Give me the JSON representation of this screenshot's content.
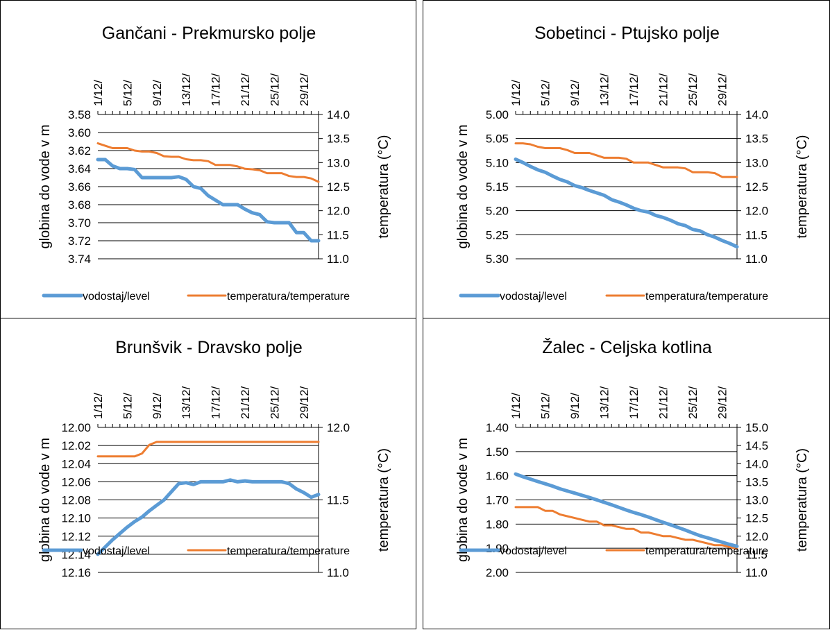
{
  "colors": {
    "level": "#5B9BD5",
    "temperature": "#ED7D31",
    "grid": "#000000"
  },
  "chart_data": [
    {
      "type": "line",
      "title": "Gančani - Prekmursko polje",
      "ylabel": "globina do vode v m",
      "y2label": "temperatura (°C)",
      "y_reversed": true,
      "ylim": [
        3.58,
        3.74
      ],
      "yticks": [
        "3.58",
        "3.60",
        "3.62",
        "3.64",
        "3.66",
        "3.68",
        "3.70",
        "3.72",
        "3.74"
      ],
      "y2lim": [
        11.0,
        14.0
      ],
      "y2ticks": [
        "14.0",
        "13.5",
        "13.0",
        "12.5",
        "12.0",
        "11.5",
        "11.0"
      ],
      "x_axis_position": "top",
      "x_ticks": [
        "1/12/",
        "5/12/",
        "9/12/",
        "13/12/",
        "17/12/",
        "21/12/",
        "25/12/",
        "29/12/"
      ],
      "grid": true,
      "legend_position": "bottom",
      "series": [
        {
          "name": "vodostaj/level",
          "axis": "left",
          "x": [
            1,
            2,
            3,
            4,
            5,
            6,
            7,
            8,
            9,
            10,
            11,
            12,
            13,
            14,
            15,
            16,
            17,
            18,
            19,
            20,
            21,
            22,
            23,
            24,
            25,
            26,
            27,
            28,
            29,
            30,
            31
          ],
          "values": [
            3.63,
            3.63,
            3.637,
            3.64,
            3.64,
            3.641,
            3.65,
            3.65,
            3.65,
            3.65,
            3.65,
            3.649,
            3.652,
            3.66,
            3.662,
            3.67,
            3.675,
            3.68,
            3.68,
            3.68,
            3.685,
            3.689,
            3.691,
            3.699,
            3.7,
            3.7,
            3.7,
            3.711,
            3.711,
            3.72,
            3.72
          ]
        },
        {
          "name": "temperatura/temperature",
          "axis": "right",
          "x": [
            1,
            2,
            3,
            4,
            5,
            6,
            7,
            8,
            9,
            10,
            11,
            12,
            13,
            14,
            15,
            16,
            17,
            18,
            19,
            20,
            21,
            22,
            23,
            24,
            25,
            26,
            27,
            28,
            29,
            30,
            31
          ],
          "values": [
            13.4,
            13.35,
            13.3,
            13.3,
            13.3,
            13.25,
            13.23,
            13.23,
            13.2,
            13.13,
            13.12,
            13.12,
            13.07,
            13.05,
            13.05,
            13.03,
            12.95,
            12.95,
            12.95,
            12.92,
            12.87,
            12.86,
            12.84,
            12.78,
            12.78,
            12.78,
            12.72,
            12.7,
            12.7,
            12.67,
            12.6
          ]
        }
      ]
    },
    {
      "type": "line",
      "title": "Sobetinci - Ptujsko polje",
      "ylabel": "globina do vode v m",
      "y2label": "temperatura (°C)",
      "y_reversed": true,
      "ylim": [
        5.0,
        5.3
      ],
      "yticks": [
        "5.00",
        "5.05",
        "5.10",
        "5.15",
        "5.20",
        "5.25",
        "5.30"
      ],
      "y2lim": [
        11.0,
        14.0
      ],
      "y2ticks": [
        "14.0",
        "13.5",
        "13.0",
        "12.5",
        "12.0",
        "11.5",
        "11.0"
      ],
      "x_axis_position": "top",
      "x_ticks": [
        "1/12/",
        "5/12/",
        "9/12/",
        "13/12/",
        "17/12/",
        "21/12/",
        "25/12/",
        "29/12/"
      ],
      "grid": true,
      "legend_position": "bottom",
      "series": [
        {
          "name": "vodostaj/level",
          "axis": "left",
          "x": [
            1,
            2,
            3,
            4,
            5,
            6,
            7,
            8,
            9,
            10,
            11,
            12,
            13,
            14,
            15,
            16,
            17,
            18,
            19,
            20,
            21,
            22,
            23,
            24,
            25,
            26,
            27,
            28,
            29,
            30,
            31
          ],
          "values": [
            5.093,
            5.1,
            5.108,
            5.115,
            5.12,
            5.128,
            5.135,
            5.14,
            5.148,
            5.152,
            5.158,
            5.163,
            5.168,
            5.177,
            5.182,
            5.188,
            5.195,
            5.2,
            5.203,
            5.21,
            5.214,
            5.22,
            5.227,
            5.231,
            5.239,
            5.242,
            5.25,
            5.255,
            5.262,
            5.268,
            5.275
          ]
        },
        {
          "name": "temperatura/temperature",
          "axis": "right",
          "x": [
            1,
            2,
            3,
            4,
            5,
            6,
            7,
            8,
            9,
            10,
            11,
            12,
            13,
            14,
            15,
            16,
            17,
            18,
            19,
            20,
            21,
            22,
            23,
            24,
            25,
            26,
            27,
            28,
            29,
            30,
            31
          ],
          "values": [
            13.4,
            13.4,
            13.38,
            13.33,
            13.3,
            13.3,
            13.3,
            13.26,
            13.2,
            13.2,
            13.2,
            13.15,
            13.1,
            13.1,
            13.1,
            13.08,
            13.0,
            13.0,
            13.0,
            12.95,
            12.9,
            12.9,
            12.9,
            12.88,
            12.8,
            12.8,
            12.8,
            12.78,
            12.7,
            12.7,
            12.7
          ]
        }
      ]
    },
    {
      "type": "line",
      "title": "Brunšvik - Dravsko polje",
      "ylabel": "globina do vode v m",
      "y2label": "temperatura (°C)",
      "y_reversed": true,
      "ylim": [
        12.0,
        12.16
      ],
      "yticks": [
        "12.00",
        "12.02",
        "12.04",
        "12.06",
        "12.08",
        "12.10",
        "12.12",
        "12.14",
        "12.16"
      ],
      "y2lim": [
        11.0,
        12.0
      ],
      "y2ticks": [
        "12.0",
        "11.5",
        "11.0"
      ],
      "x_axis_position": "top",
      "x_ticks": [
        "1/12/",
        "5/12/",
        "9/12/",
        "13/12/",
        "17/12/",
        "21/12/",
        "25/12/",
        "29/12/"
      ],
      "grid": true,
      "legend_position": "bottom",
      "series": [
        {
          "name": "vodostaj/level",
          "axis": "left",
          "x": [
            1,
            2,
            3,
            4,
            5,
            6,
            7,
            8,
            9,
            10,
            11,
            12,
            13,
            14,
            15,
            16,
            17,
            18,
            19,
            20,
            21,
            22,
            23,
            24,
            25,
            26,
            27,
            28,
            29,
            30,
            31
          ],
          "values": [
            12.14,
            12.132,
            12.124,
            12.117,
            12.11,
            12.104,
            12.099,
            12.092,
            12.086,
            12.08,
            12.071,
            12.062,
            12.061,
            12.063,
            12.06,
            12.06,
            12.06,
            12.06,
            12.058,
            12.06,
            12.059,
            12.06,
            12.06,
            12.06,
            12.06,
            12.06,
            12.062,
            12.068,
            12.072,
            12.077,
            12.074
          ]
        },
        {
          "name": "temperatura/temperature",
          "axis": "right",
          "x": [
            1,
            2,
            3,
            4,
            5,
            6,
            7,
            8,
            9,
            10,
            11,
            12,
            13,
            14,
            15,
            16,
            17,
            18,
            19,
            20,
            21,
            22,
            23,
            24,
            25,
            26,
            27,
            28,
            29,
            30,
            31
          ],
          "values": [
            11.8,
            11.8,
            11.8,
            11.8,
            11.8,
            11.8,
            11.82,
            11.88,
            11.9,
            11.9,
            11.9,
            11.9,
            11.9,
            11.9,
            11.9,
            11.9,
            11.9,
            11.9,
            11.9,
            11.9,
            11.9,
            11.9,
            11.9,
            11.9,
            11.9,
            11.9,
            11.9,
            11.9,
            11.9,
            11.9,
            11.9
          ]
        }
      ]
    },
    {
      "type": "line",
      "title": "Žalec - Celjska kotlina",
      "ylabel": "globina do vode v m",
      "y2label": "temperatura (°C)",
      "y_reversed": true,
      "ylim": [
        1.4,
        2.0
      ],
      "yticks": [
        "1.40",
        "1.50",
        "1.60",
        "1.70",
        "1.80",
        "1.90",
        "2.00"
      ],
      "y2lim": [
        11.0,
        15.0
      ],
      "y2ticks": [
        "15.0",
        "14.5",
        "14.0",
        "13.5",
        "13.0",
        "12.5",
        "12.0",
        "11.5",
        "11.0"
      ],
      "x_axis_position": "top",
      "x_ticks": [
        "1/12/",
        "5/12/",
        "9/12/",
        "13/12/",
        "17/12/",
        "21/12/",
        "25/12/",
        "29/12/"
      ],
      "grid": true,
      "legend_position": "bottom",
      "series": [
        {
          "name": "vodostaj/level",
          "axis": "left",
          "x": [
            1,
            2,
            3,
            4,
            5,
            6,
            7,
            8,
            9,
            10,
            11,
            12,
            13,
            14,
            15,
            16,
            17,
            18,
            19,
            20,
            21,
            22,
            23,
            24,
            25,
            26,
            27,
            28,
            29,
            30,
            31
          ],
          "values": [
            1.593,
            1.604,
            1.614,
            1.624,
            1.633,
            1.643,
            1.654,
            1.663,
            1.672,
            1.681,
            1.69,
            1.7,
            1.71,
            1.72,
            1.731,
            1.742,
            1.752,
            1.761,
            1.771,
            1.782,
            1.793,
            1.803,
            1.814,
            1.825,
            1.837,
            1.848,
            1.857,
            1.866,
            1.875,
            1.884,
            1.892
          ]
        },
        {
          "name": "temperatura/temperature",
          "axis": "right",
          "x": [
            1,
            2,
            3,
            4,
            5,
            6,
            7,
            8,
            9,
            10,
            11,
            12,
            13,
            14,
            15,
            16,
            17,
            18,
            19,
            20,
            21,
            22,
            23,
            24,
            25,
            26,
            27,
            28,
            29,
            30,
            31
          ],
          "values": [
            12.8,
            12.8,
            12.8,
            12.8,
            12.7,
            12.7,
            12.6,
            12.55,
            12.5,
            12.45,
            12.4,
            12.4,
            12.3,
            12.3,
            12.25,
            12.2,
            12.2,
            12.1,
            12.1,
            12.05,
            12.0,
            12.0,
            11.95,
            11.9,
            11.9,
            11.85,
            11.8,
            11.75,
            11.75,
            11.7,
            11.65
          ]
        }
      ]
    }
  ]
}
